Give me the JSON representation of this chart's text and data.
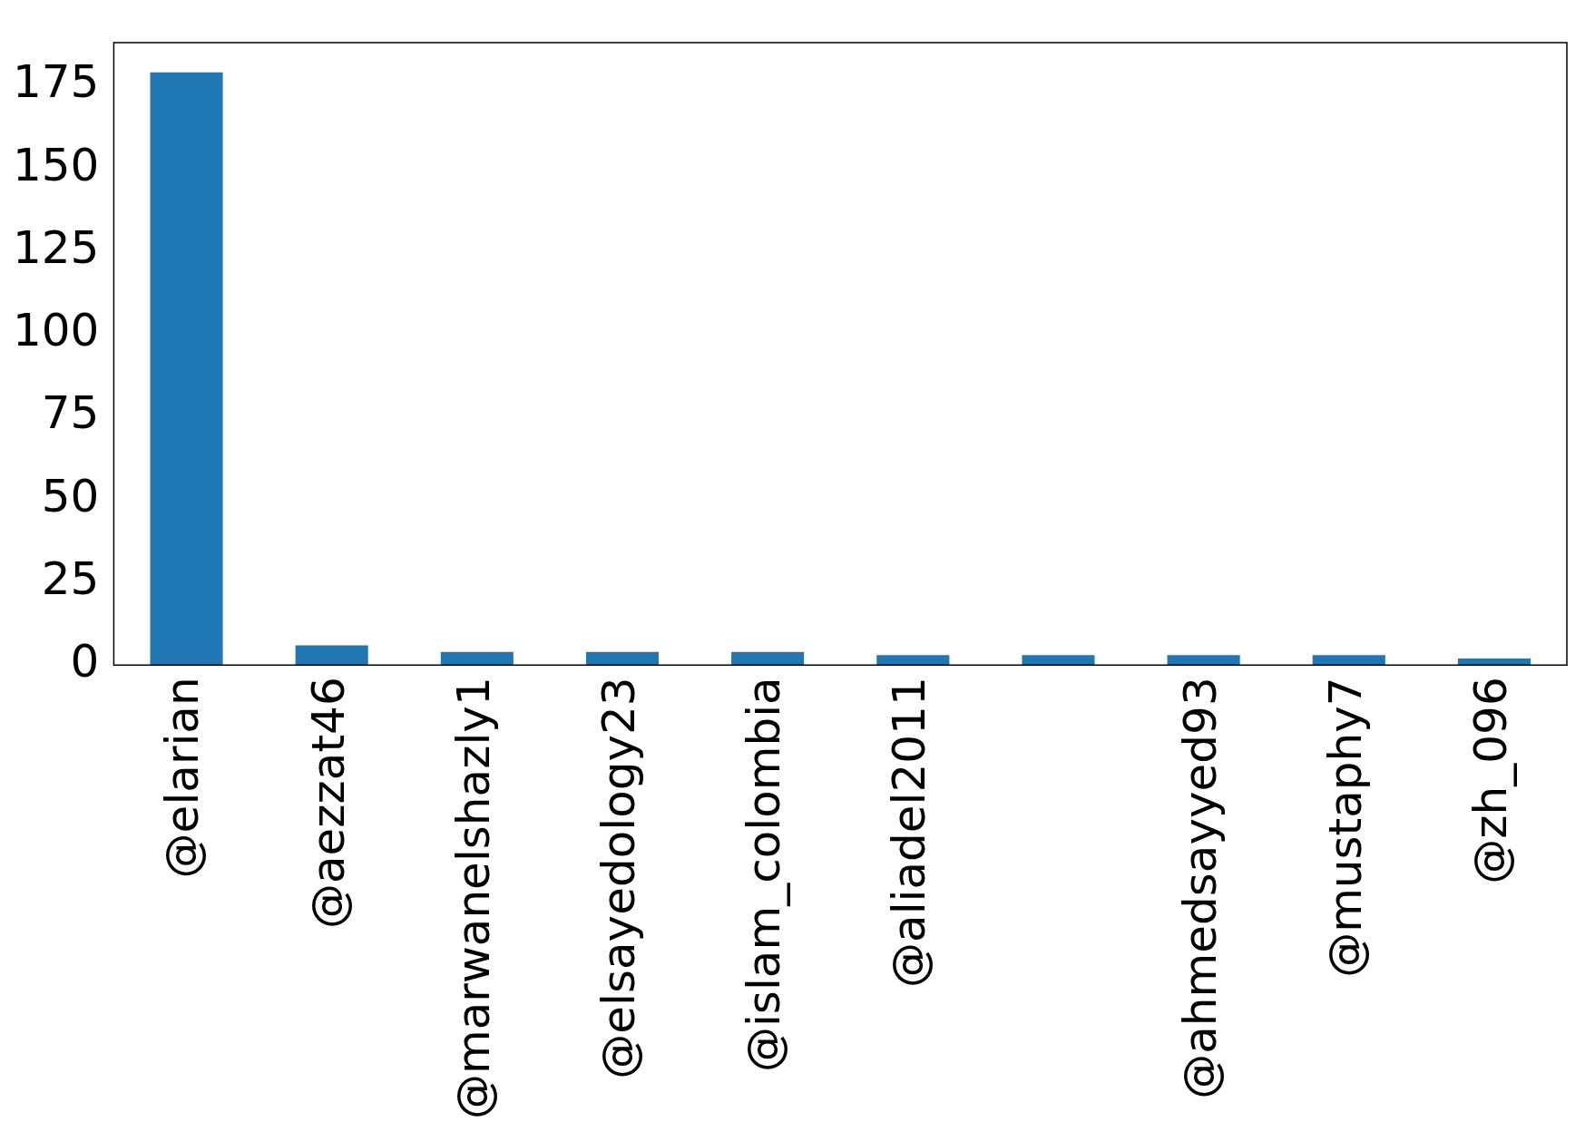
{
  "chart_data": {
    "type": "bar",
    "categories": [
      "@elarian",
      "@aezzat46",
      "@marwanelshazly1",
      "@elsayedology23",
      "@islam_colombia",
      "@aliadel2011",
      null,
      "@ahmedsayyed93",
      "@mustaphy7",
      "@zh_096"
    ],
    "values": [
      179,
      6,
      4,
      4,
      4,
      3,
      3,
      3,
      3,
      2
    ],
    "color": "#1f77b4",
    "ylim": [
      0,
      188
    ],
    "yticks": [
      0,
      25,
      50,
      75,
      100,
      125,
      150,
      175
    ],
    "grid": false,
    "legend": false
  }
}
